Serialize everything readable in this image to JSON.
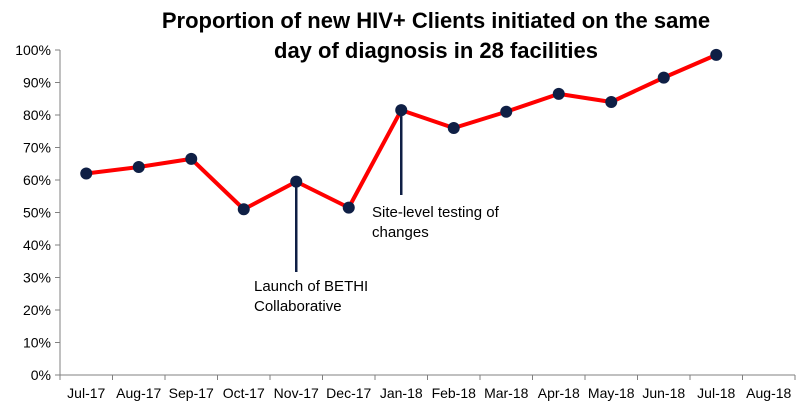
{
  "chart_data": {
    "type": "line",
    "title_line1": "Proportion of  new HIV+ Clients initiated on the same",
    "title_line2": "day of diagnosis in 28 facilities",
    "categories": [
      "Jul-17",
      "Aug-17",
      "Sep-17",
      "Oct-17",
      "Nov-17",
      "Dec-17",
      "Jan-18",
      "Feb-18",
      "Mar-18",
      "Apr-18",
      "May-18",
      "Jun-18",
      "Jul-18",
      "Aug-18"
    ],
    "series": [
      {
        "values": [
          62,
          64,
          66.5,
          51,
          59.5,
          51.5,
          81.5,
          76,
          81,
          86.5,
          84,
          91.5,
          98.5,
          null
        ]
      }
    ],
    "ylim": [
      0,
      100
    ],
    "yticks": [
      0,
      10,
      20,
      30,
      40,
      50,
      60,
      70,
      80,
      90,
      100
    ],
    "yticklabels": [
      "0%",
      "10%",
      "20%",
      "30%",
      "40%",
      "50%",
      "60%",
      "70%",
      "80%",
      "90%",
      "100%"
    ],
    "xlabel": "",
    "ylabel": "",
    "annotations": [
      {
        "category": "Nov-17",
        "lines": [
          "Launch of BETHI",
          "Collaborative"
        ]
      },
      {
        "category": "Jan-18",
        "lines": [
          "Site-level testing of",
          "changes"
        ]
      }
    ],
    "line_color": "#ff0000",
    "marker_color": "#0f1f45",
    "annotation_line_color": "#0f1f45"
  }
}
